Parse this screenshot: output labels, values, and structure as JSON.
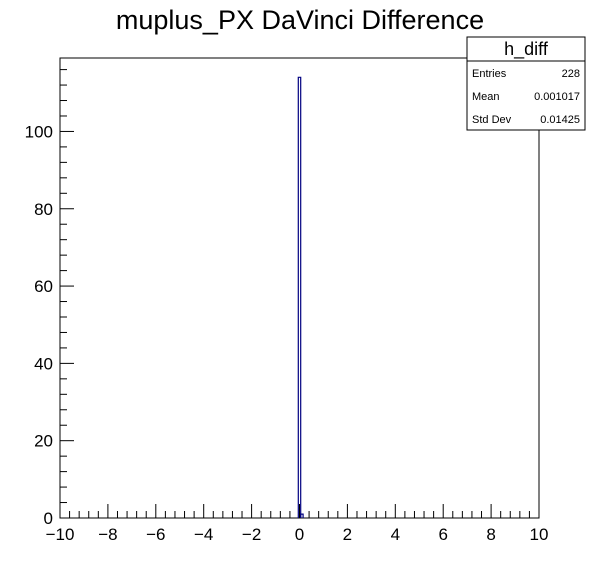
{
  "chart_data": {
    "type": "bar",
    "title": "muplus_PX DaVinci Difference",
    "xlabel": "",
    "ylabel": "",
    "xlim": [
      -10,
      10
    ],
    "ylim": [
      0,
      119
    ],
    "x_major_ticks": [
      -10,
      -8,
      -6,
      -4,
      -2,
      0,
      2,
      4,
      6,
      8,
      10
    ],
    "x_tick_labels": [
      "−10",
      "−8",
      "−6",
      "−4",
      "−2",
      "0",
      "2",
      "4",
      "6",
      "8",
      "10"
    ],
    "y_major_ticks": [
      0,
      20,
      40,
      60,
      80,
      100
    ],
    "y_tick_labels": [
      "0",
      "20",
      "40",
      "60",
      "80",
      "100"
    ],
    "bins": [
      {
        "x0": -0.05,
        "x1": 0.05,
        "value": 114
      },
      {
        "x0": 0.05,
        "x1": 0.15,
        "value": 1
      }
    ],
    "line_color": "#000080",
    "grid": false,
    "legend": "top-right",
    "stats": {
      "name": "h_diff",
      "rows": [
        {
          "label": "Entries",
          "value": "228"
        },
        {
          "label": "Mean",
          "value": "0.001017"
        },
        {
          "label": "Std Dev",
          "value": "0.01425"
        }
      ]
    }
  }
}
